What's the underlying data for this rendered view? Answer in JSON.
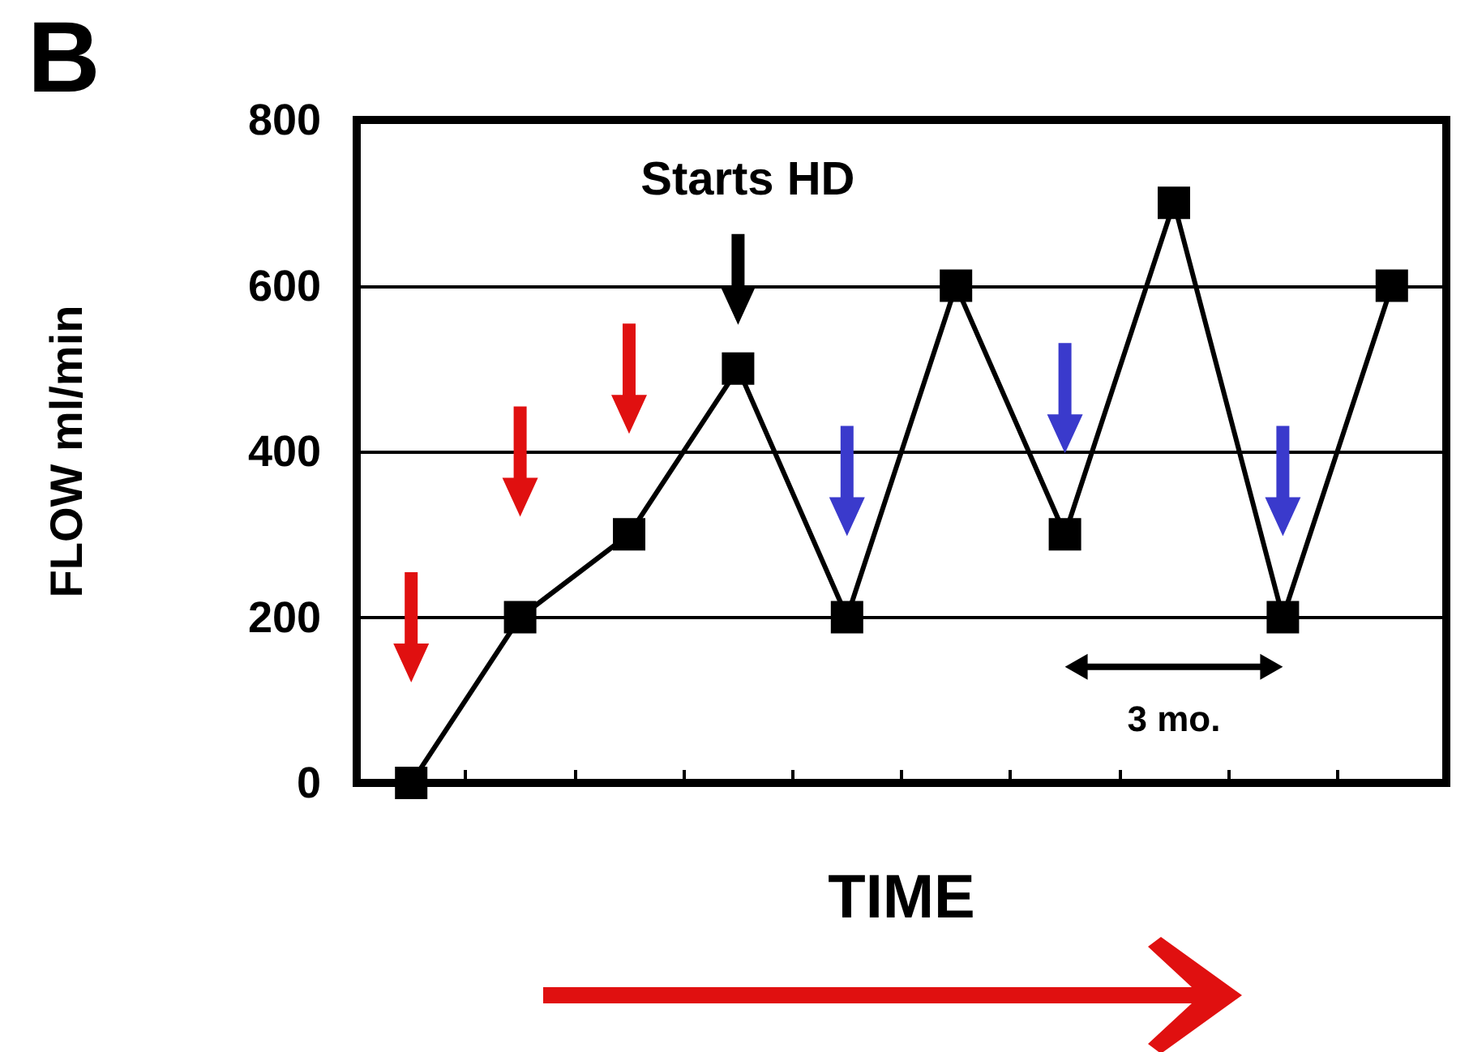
{
  "chart_data": {
    "type": "line",
    "title": "B",
    "xlabel": "TIME",
    "ylabel": "FLOW ml/min",
    "categories": [
      null,
      null,
      null,
      null,
      null,
      null,
      null,
      null,
      null,
      null
    ],
    "series": [
      {
        "color": "#000000",
        "values": [
          0,
          200,
          300,
          500,
          200,
          600,
          300,
          700,
          200,
          600
        ]
      }
    ],
    "ylim": [
      0,
      800
    ],
    "yticks": [
      0,
      200,
      400,
      600,
      800
    ],
    "grid": "y",
    "marker": "square",
    "line_style": "solid",
    "tick_labels": "y",
    "annotations": [
      "Starts HD",
      "3 mo."
    ]
  }
}
